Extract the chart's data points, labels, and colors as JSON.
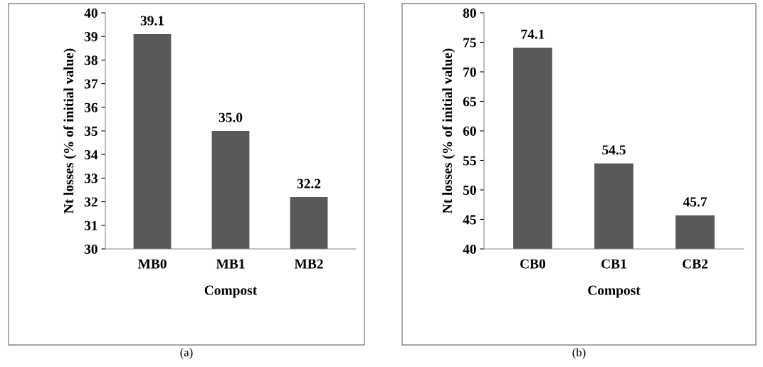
{
  "chart_data": [
    {
      "type": "bar",
      "xlabel": "Compost",
      "ylabel": "Nt losses (% of initial value)",
      "categories": [
        "MB0",
        "MB1",
        "MB2"
      ],
      "values": [
        39.1,
        35.0,
        32.2
      ],
      "value_labels": [
        "39.1",
        "35.0",
        "32.2"
      ],
      "color": "#595959",
      "ylim": [
        30,
        40
      ],
      "yticks": [
        30,
        31,
        32,
        33,
        34,
        35,
        36,
        37,
        38,
        39,
        40
      ],
      "grid": false,
      "annotations": [
        "(a)"
      ]
    },
    {
      "type": "bar",
      "xlabel": "Compost",
      "ylabel": "Nt losses (% of initial value)",
      "categories": [
        "CB0",
        "CB1",
        "CB2"
      ],
      "values": [
        74.1,
        54.5,
        45.7
      ],
      "value_labels": [
        "74.1",
        "54.5",
        "45.7"
      ],
      "color": "#595959",
      "ylim": [
        40,
        80
      ],
      "yticks": [
        40,
        45,
        50,
        55,
        60,
        65,
        70,
        75,
        80
      ],
      "grid": false,
      "annotations": [
        "(b)"
      ]
    }
  ]
}
